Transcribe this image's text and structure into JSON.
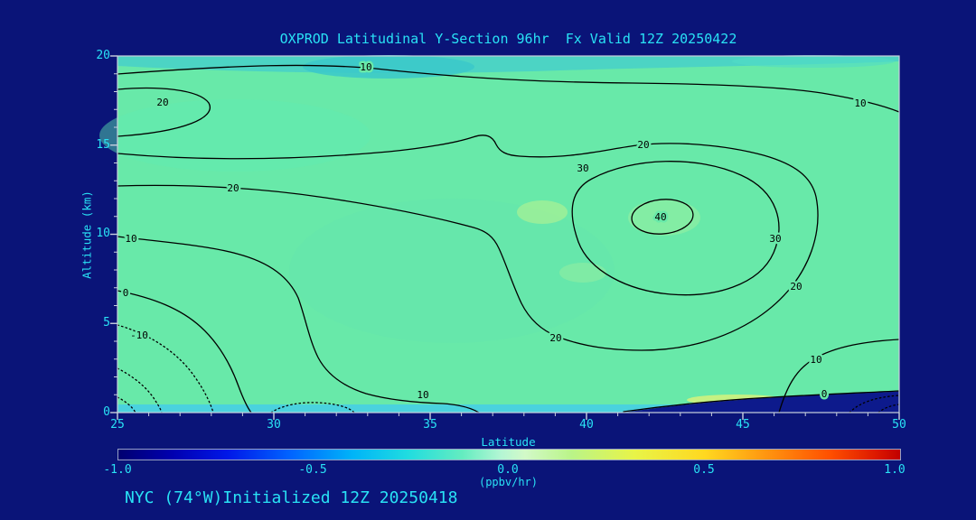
{
  "title": "OXPROD Latitudinal Y-Section 96hr  Fx Valid 12Z 20250422",
  "footer": "NYC (74°W)Initialized 12Z 20250418",
  "axes": {
    "x_label": "Latitude",
    "y_label": "Altitude (km)",
    "x_tick_labels": [
      "25",
      "30",
      "35",
      "40",
      "45",
      "50"
    ],
    "y_tick_labels": [
      "0",
      "5",
      "10",
      "15",
      "20"
    ]
  },
  "colorbar": {
    "label": "(ppbv/hr)",
    "tick_labels": [
      "-1.0",
      "-0.5",
      "0.0",
      "0.5",
      "1.0"
    ]
  },
  "chart_data": {
    "type": "contour",
    "title": "OXPROD Latitudinal Y-Section 96hr  Fx Valid 12Z 20250422",
    "xlabel": "Latitude",
    "ylabel": "Altitude (km)",
    "xlim": [
      25,
      50
    ],
    "ylim": [
      0,
      20
    ],
    "x_ticks": [
      25,
      30,
      35,
      40,
      45,
      50
    ],
    "y_ticks": [
      0,
      5,
      10,
      15,
      20
    ],
    "contour_levels_labeled": [
      -10,
      0,
      10,
      20,
      30,
      40
    ],
    "negative_contours_style": "dotted",
    "level_labels": {
      "neg10": "-10",
      "zero": "0",
      "ten": "10",
      "twenty": "20",
      "thirty": "30",
      "forty": "40"
    },
    "features": [
      {
        "feature": "closed maximum",
        "value": 40,
        "latitude": 42.5,
        "altitude_km": 10.5
      },
      {
        "feature": "broad region greater than 20",
        "location": "upper-left band (alt 12-17 km) connecting to central maximum"
      },
      {
        "feature": "small closed 20 contour",
        "location": "left edge near 17 km"
      },
      {
        "feature": "negative region, dotted contours below -10",
        "location": "lower-left corner below ~5 km"
      },
      {
        "feature": "negative region, dotted contours",
        "location": "lower-right corner near surface"
      },
      {
        "feature": "dark navy (negative) fill band",
        "location": "surface, latitude ~38-50"
      },
      {
        "feature": "cyan (slightly negative) band",
        "location": "top edge ~19-20 km and thin surface strip lat 25-38"
      }
    ],
    "colorbar": {
      "label": "(ppbv/hr)",
      "min": -1.0,
      "max": 1.0,
      "ticks": [
        -1.0,
        -0.5,
        0.0,
        0.5,
        1.0
      ],
      "palette_hint": [
        "navy",
        "blue",
        "cyan",
        "pale green",
        "green",
        "yellow",
        "orange",
        "red"
      ]
    },
    "fill_note": "interior fill nearly uniform light green (~0 to 0.1 ppbv/hr) with faint yellow-green patches near the 40 maximum and near surface lat ~44"
  }
}
